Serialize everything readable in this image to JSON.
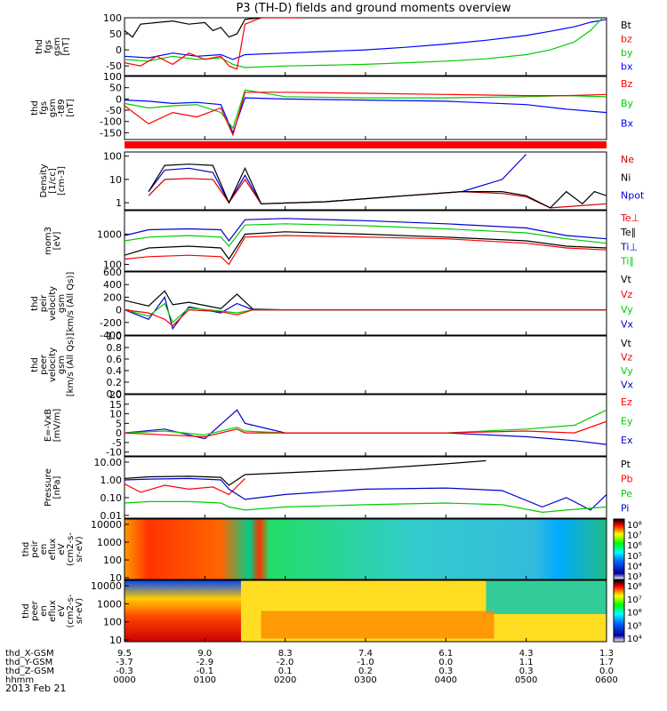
{
  "chart_data": {
    "type": "line",
    "title": "P3 (TH-D) fields and ground moments overview",
    "date": "2013 Feb 21",
    "time_axis": {
      "hhmm": [
        "0000",
        "0100",
        "0200",
        "0300",
        "0400",
        "0500",
        "0600"
      ],
      "X_GSM": [
        "9.5",
        "9.0",
        "8.3",
        "7.4",
        "6.1",
        "4.3",
        "1.3"
      ],
      "Y_GSM": [
        "-3.7",
        "-2.9",
        "-2.0",
        "-1.0",
        "0.0",
        "1.1",
        "1.7"
      ],
      "Z_GSM": [
        "-0.3",
        "-0.1",
        "0.1",
        "0.2",
        "0.3",
        "0.3",
        "0.0"
      ],
      "row_labels": [
        "thd_X-GSM",
        "thd_Y-GSM",
        "thd_Z-GSM",
        "hhmm"
      ]
    },
    "panels": [
      {
        "id": "fgs",
        "ylabel": [
          "thd",
          "fgs",
          "gsm",
          "[nT]"
        ],
        "ticks": [
          "100",
          "50",
          "0",
          "-50"
        ],
        "ylim": [
          -80,
          100
        ],
        "legend": [
          {
            "name": "Bt",
            "color": "#000000"
          },
          {
            "name": "bz",
            "color": "#ff0000"
          },
          {
            "name": "by",
            "color": "#00cc00"
          },
          {
            "name": "bx",
            "color": "#0000ff"
          }
        ]
      },
      {
        "id": "fgs_t89",
        "ylabel": [
          "thd",
          "fgs",
          "gsm",
          "-t89",
          "[nT]"
        ],
        "ticks": [
          "100",
          "50",
          "0",
          "-50",
          "-100",
          "-150"
        ],
        "ylim": [
          -180,
          100
        ],
        "legend": [
          {
            "name": "Bz",
            "color": "#ff0000"
          },
          {
            "name": "By",
            "color": "#00cc00"
          },
          {
            "name": "Bx",
            "color": "#0000ff"
          }
        ]
      },
      {
        "id": "density",
        "ylabel": [
          "Density",
          "[1/cc]",
          "[cm-3]"
        ],
        "ticks": [
          "100",
          "10",
          "1"
        ],
        "ylim": [
          0.5,
          150
        ],
        "legend": [
          {
            "name": "Ne",
            "color": "#cc0000"
          },
          {
            "name": "Ni",
            "color": "#000000"
          },
          {
            "name": "Npot",
            "color": "#0000cc"
          }
        ]
      },
      {
        "id": "temp",
        "ylabel": [
          "mom3",
          "[eV]"
        ],
        "ticks": [
          "1000",
          "100"
        ],
        "ylim": [
          60,
          6000
        ],
        "legend": [
          {
            "name": "Te⊥",
            "color": "#ff0000"
          },
          {
            "name": "Te∥",
            "color": "#000000"
          },
          {
            "name": "Ti⊥",
            "color": "#0000cc"
          },
          {
            "name": "Ti∥",
            "color": "#00cc00"
          }
        ]
      },
      {
        "id": "vel_i",
        "ylabel": [
          "thd",
          "peir",
          "velocity",
          "gsm",
          "[km/s (All Qs)]"
        ],
        "ticks": [
          "600",
          "400",
          "200",
          "0",
          "-200",
          "-400"
        ],
        "ylim": [
          -400,
          600
        ],
        "legend": [
          {
            "name": "Vt",
            "color": "#000000"
          },
          {
            "name": "Vz",
            "color": "#ff0000"
          },
          {
            "name": "Vy",
            "color": "#00cc00"
          },
          {
            "name": "Vx",
            "color": "#0000cc"
          }
        ]
      },
      {
        "id": "vel_e",
        "ylabel": [
          "thd",
          "peer",
          "velocity",
          "gsm",
          "[km/s (All Qs)]"
        ],
        "ticks": [
          "1.0",
          "0.8",
          "0.6",
          "0.4",
          "0.2",
          "0.0"
        ],
        "ylim": [
          0,
          1
        ],
        "legend": [
          {
            "name": "Vt",
            "color": "#000000"
          },
          {
            "name": "Vz",
            "color": "#ff0000"
          },
          {
            "name": "Vy",
            "color": "#00cc00"
          },
          {
            "name": "Vx",
            "color": "#0000cc"
          }
        ]
      },
      {
        "id": "efield",
        "ylabel": [
          "E=-VxB",
          "[mV/m]"
        ],
        "ticks": [
          "20",
          "15",
          "10",
          "5",
          "0",
          "-5",
          "-10"
        ],
        "ylim": [
          -12,
          20
        ],
        "legend": [
          {
            "name": "Ez",
            "color": "#ff0000"
          },
          {
            "name": "Ey",
            "color": "#00cc00"
          },
          {
            "name": "Ex",
            "color": "#0000cc"
          }
        ]
      },
      {
        "id": "pressure",
        "ylabel": [
          "Pressure",
          "[nPa]"
        ],
        "ticks": [
          "10.00",
          "1.00",
          "0.10",
          "0.01"
        ],
        "ylim": [
          0.007,
          20
        ],
        "legend": [
          {
            "name": "Pt",
            "color": "#000000"
          },
          {
            "name": "Pb",
            "color": "#ff0000"
          },
          {
            "name": "Pe",
            "color": "#00cc00"
          },
          {
            "name": "Pi",
            "color": "#0000cc"
          }
        ]
      },
      {
        "id": "ion_spec",
        "ylabel": [
          "thd",
          "peir",
          "en",
          "eflux",
          "eV",
          "(cm2-s-",
          "sr-eV)"
        ],
        "ticks": [
          "10000",
          "1000",
          "100",
          "10"
        ],
        "ylim": [
          8,
          20000
        ],
        "colorbar": [
          "10⁸",
          "10⁷",
          "10⁶",
          "10⁵",
          "10⁴",
          "10³"
        ]
      },
      {
        "id": "elec_spec",
        "ylabel": [
          "thd",
          "peer",
          "en",
          "eflux",
          "eV",
          "(cm2-s-",
          "sr-eV)"
        ],
        "ticks": [
          "10000",
          "1000",
          "100",
          "10"
        ],
        "ylim": [
          8,
          20000
        ],
        "colorbar": [
          "10⁸",
          "10⁷",
          "10⁶",
          "10⁵",
          "10⁴"
        ]
      }
    ],
    "series": [
      {
        "panel": "fgs",
        "name": "bx",
        "color": "#0000ff",
        "x": [
          0,
          0.3,
          0.6,
          0.9,
          1.2,
          1.35,
          1.5,
          2,
          2.5,
          3,
          3.5,
          4,
          4.5,
          5,
          5.3,
          5.6,
          5.8,
          6
        ],
        "y": [
          -20,
          -25,
          -10,
          -20,
          -15,
          -30,
          -15,
          -10,
          -5,
          0,
          8,
          18,
          30,
          45,
          58,
          72,
          86,
          95
        ]
      },
      {
        "panel": "fgs",
        "name": "by",
        "color": "#00cc00",
        "x": [
          0,
          0.3,
          0.6,
          0.9,
          1.2,
          1.35,
          1.5,
          2,
          2.5,
          3,
          3.5,
          4,
          4.5,
          5,
          5.3,
          5.6,
          5.8,
          5.95
        ],
        "y": [
          -30,
          -35,
          -20,
          -30,
          -25,
          -45,
          -55,
          -50,
          -48,
          -45,
          -40,
          -35,
          -28,
          -15,
          0,
          25,
          60,
          100
        ]
      },
      {
        "panel": "fgs",
        "name": "bz",
        "color": "#ff0000",
        "x": [
          0,
          0.2,
          0.4,
          0.6,
          0.8,
          1.0,
          1.2,
          1.3,
          1.4,
          1.5,
          1.7,
          2.2
        ],
        "y": [
          -40,
          -50,
          -20,
          -45,
          -10,
          -30,
          -20,
          -50,
          -60,
          80,
          100,
          100
        ]
      },
      {
        "panel": "fgs",
        "name": "Bt",
        "color": "#000000",
        "x": [
          0,
          0.1,
          0.2,
          0.4,
          0.6,
          0.8,
          1.0,
          1.1,
          1.2,
          1.3,
          1.4,
          1.5,
          1.7
        ],
        "y": [
          60,
          40,
          80,
          85,
          90,
          80,
          85,
          60,
          70,
          40,
          50,
          95,
          100
        ]
      },
      {
        "panel": "fgs_t89",
        "name": "Bx",
        "color": "#0000ff",
        "x": [
          0,
          0.3,
          0.6,
          0.9,
          1.2,
          1.35,
          1.5,
          2,
          3,
          4,
          5,
          5.5,
          6
        ],
        "y": [
          -5,
          -10,
          -20,
          -15,
          -25,
          -150,
          5,
          0,
          -5,
          -10,
          -25,
          -45,
          -60
        ]
      },
      {
        "panel": "fgs_t89",
        "name": "By",
        "color": "#00cc00",
        "x": [
          0,
          0.3,
          0.6,
          0.9,
          1.2,
          1.35,
          1.5,
          2,
          3,
          4,
          5,
          5.5,
          6
        ],
        "y": [
          -20,
          -40,
          -30,
          -25,
          -60,
          -130,
          40,
          10,
          5,
          5,
          10,
          15,
          10
        ]
      },
      {
        "panel": "fgs_t89",
        "name": "Bz",
        "color": "#ff0000",
        "x": [
          0,
          0.3,
          0.6,
          0.9,
          1.2,
          1.35,
          1.5,
          2,
          3,
          4,
          5,
          5.5,
          6
        ],
        "y": [
          -30,
          -110,
          -60,
          -80,
          -40,
          -160,
          30,
          30,
          25,
          20,
          15,
          15,
          20
        ]
      },
      {
        "panel": "density",
        "name": "Npot",
        "color": "#0000cc",
        "x": [
          0.3,
          0.5,
          0.8,
          1.1,
          1.3,
          1.5,
          1.7,
          2.5,
          3.5,
          4.2,
          4.7,
          5.0
        ],
        "y": [
          3,
          25,
          30,
          20,
          1,
          15,
          0.9,
          1.1,
          2,
          3,
          10,
          120
        ]
      },
      {
        "panel": "density",
        "name": "Ne",
        "color": "#cc0000",
        "x": [
          0.3,
          0.5,
          0.8,
          1.1,
          1.3,
          1.5,
          1.7,
          2.5,
          3.5,
          4.2,
          4.7,
          5.0,
          5.3,
          6
        ],
        "y": [
          2,
          10,
          11,
          10,
          1,
          10,
          0.9,
          1.1,
          2,
          3,
          2.5,
          1.8,
          0.6,
          0.9
        ]
      },
      {
        "panel": "density",
        "name": "Ni",
        "color": "#000000",
        "x": [
          0.3,
          0.5,
          0.8,
          1.1,
          1.3,
          1.5,
          1.7,
          2.5,
          3.5,
          4.2,
          4.7,
          5.0,
          5.3,
          5.5,
          5.7,
          5.85,
          6
        ],
        "y": [
          3,
          40,
          45,
          40,
          1,
          30,
          0.9,
          1.1,
          2,
          3,
          3,
          2,
          0.6,
          3,
          0.9,
          3,
          2
        ]
      },
      {
        "panel": "temp",
        "name": "Ti⊥",
        "color": "#0000cc",
        "x": [
          0,
          0.3,
          0.8,
          1.2,
          1.3,
          1.5,
          2,
          3,
          4,
          5,
          5.5,
          6
        ],
        "y": [
          900,
          1400,
          1500,
          1400,
          600,
          3000,
          3300,
          2800,
          2200,
          1600,
          900,
          700
        ]
      },
      {
        "panel": "temp",
        "name": "Ti∥",
        "color": "#00cc00",
        "x": [
          0,
          0.3,
          0.8,
          1.2,
          1.3,
          1.5,
          2,
          3,
          4,
          5,
          5.5,
          6
        ],
        "y": [
          600,
          800,
          900,
          800,
          400,
          2000,
          2200,
          1900,
          1500,
          1100,
          700,
          500
        ]
      },
      {
        "panel": "temp",
        "name": "Te∥",
        "color": "#000000",
        "x": [
          0,
          0.3,
          0.8,
          1.2,
          1.3,
          1.5,
          2,
          3,
          4,
          5,
          5.5,
          6
        ],
        "y": [
          200,
          350,
          400,
          350,
          150,
          1000,
          1200,
          1000,
          800,
          600,
          400,
          350
        ]
      },
      {
        "panel": "temp",
        "name": "Te⊥",
        "color": "#ff0000",
        "x": [
          0,
          0.3,
          0.8,
          1.2,
          1.3,
          1.5,
          2,
          3,
          4,
          5,
          5.5,
          6
        ],
        "y": [
          150,
          180,
          200,
          180,
          100,
          800,
          900,
          800,
          700,
          500,
          350,
          300
        ]
      },
      {
        "panel": "vel_i",
        "name": "Vt",
        "color": "#000000",
        "x": [
          0,
          0.3,
          0.5,
          0.6,
          0.8,
          1.2,
          1.4,
          1.6,
          2,
          6
        ],
        "y": [
          150,
          60,
          300,
          80,
          120,
          20,
          250,
          10,
          0,
          0
        ]
      },
      {
        "panel": "vel_i",
        "name": "Vx",
        "color": "#0000cc",
        "x": [
          0,
          0.3,
          0.5,
          0.6,
          0.8,
          1.2,
          1.4,
          1.6,
          2,
          6
        ],
        "y": [
          0,
          -150,
          200,
          -300,
          50,
          -50,
          100,
          0,
          0,
          0
        ]
      },
      {
        "panel": "vel_i",
        "name": "Vy",
        "color": "#00cc00",
        "x": [
          0,
          0.3,
          0.5,
          0.6,
          0.8,
          1.2,
          1.4,
          1.6,
          2,
          6
        ],
        "y": [
          0,
          -100,
          100,
          -200,
          30,
          -20,
          -50,
          0,
          0,
          0
        ]
      },
      {
        "panel": "vel_i",
        "name": "Vz",
        "color": "#ff0000",
        "x": [
          0,
          0.3,
          0.5,
          0.6,
          0.8,
          1.2,
          1.4,
          1.6,
          2,
          6
        ],
        "y": [
          0,
          -50,
          -150,
          -250,
          0,
          -30,
          -80,
          0,
          0,
          0
        ]
      },
      {
        "panel": "efield",
        "name": "Ex",
        "color": "#0000cc",
        "x": [
          0,
          0.5,
          1.0,
          1.4,
          1.5,
          2,
          3,
          4,
          5,
          5.6,
          6
        ],
        "y": [
          0,
          2,
          -3,
          12,
          5,
          0,
          0,
          0,
          -2,
          -4,
          -6
        ]
      },
      {
        "panel": "efield",
        "name": "Ey",
        "color": "#00cc00",
        "x": [
          0,
          0.5,
          1.0,
          1.4,
          1.5,
          2,
          3,
          4,
          5,
          5.6,
          6
        ],
        "y": [
          0,
          1,
          -1,
          3,
          1,
          0,
          0,
          0,
          2,
          4,
          12
        ]
      },
      {
        "panel": "efield",
        "name": "Ez",
        "color": "#ff0000",
        "x": [
          0,
          0.5,
          1.0,
          1.4,
          1.5,
          2,
          3,
          4,
          5,
          5.6,
          6
        ],
        "y": [
          0,
          -1,
          -2,
          2,
          0,
          0,
          0,
          0,
          1,
          0,
          6
        ]
      },
      {
        "panel": "pressure",
        "name": "Pt",
        "color": "#000000",
        "x": [
          0,
          0.3,
          0.8,
          1.2,
          1.3,
          1.5,
          2,
          3,
          4,
          4.5
        ],
        "y": [
          1.2,
          1.5,
          1.6,
          1.4,
          0.5,
          2,
          2.5,
          4,
          8,
          12
        ]
      },
      {
        "panel": "pressure",
        "name": "Pb",
        "color": "#ff0000",
        "x": [
          0,
          0.2,
          0.5,
          0.8,
          1.1,
          1.3,
          1.5
        ],
        "y": [
          0.6,
          0.2,
          0.5,
          0.3,
          0.4,
          0.15,
          1.2
        ]
      },
      {
        "panel": "pressure",
        "name": "Pi",
        "color": "#0000cc",
        "x": [
          0,
          0.3,
          0.8,
          1.2,
          1.3,
          1.5,
          2,
          3,
          4,
          4.7,
          5.2,
          5.5,
          5.8,
          6
        ],
        "y": [
          1.0,
          1.1,
          1.2,
          1.0,
          0.3,
          0.08,
          0.15,
          0.3,
          0.35,
          0.25,
          0.03,
          0.1,
          0.02,
          0.15
        ]
      },
      {
        "panel": "pressure",
        "name": "Pe",
        "color": "#00cc00",
        "x": [
          0,
          0.3,
          0.8,
          1.2,
          1.3,
          1.5,
          2,
          3,
          4,
          4.7,
          5.2,
          5.5,
          6
        ],
        "y": [
          0.05,
          0.06,
          0.06,
          0.05,
          0.03,
          0.02,
          0.03,
          0.04,
          0.05,
          0.04,
          0.015,
          0.02,
          0.03
        ]
      }
    ]
  }
}
